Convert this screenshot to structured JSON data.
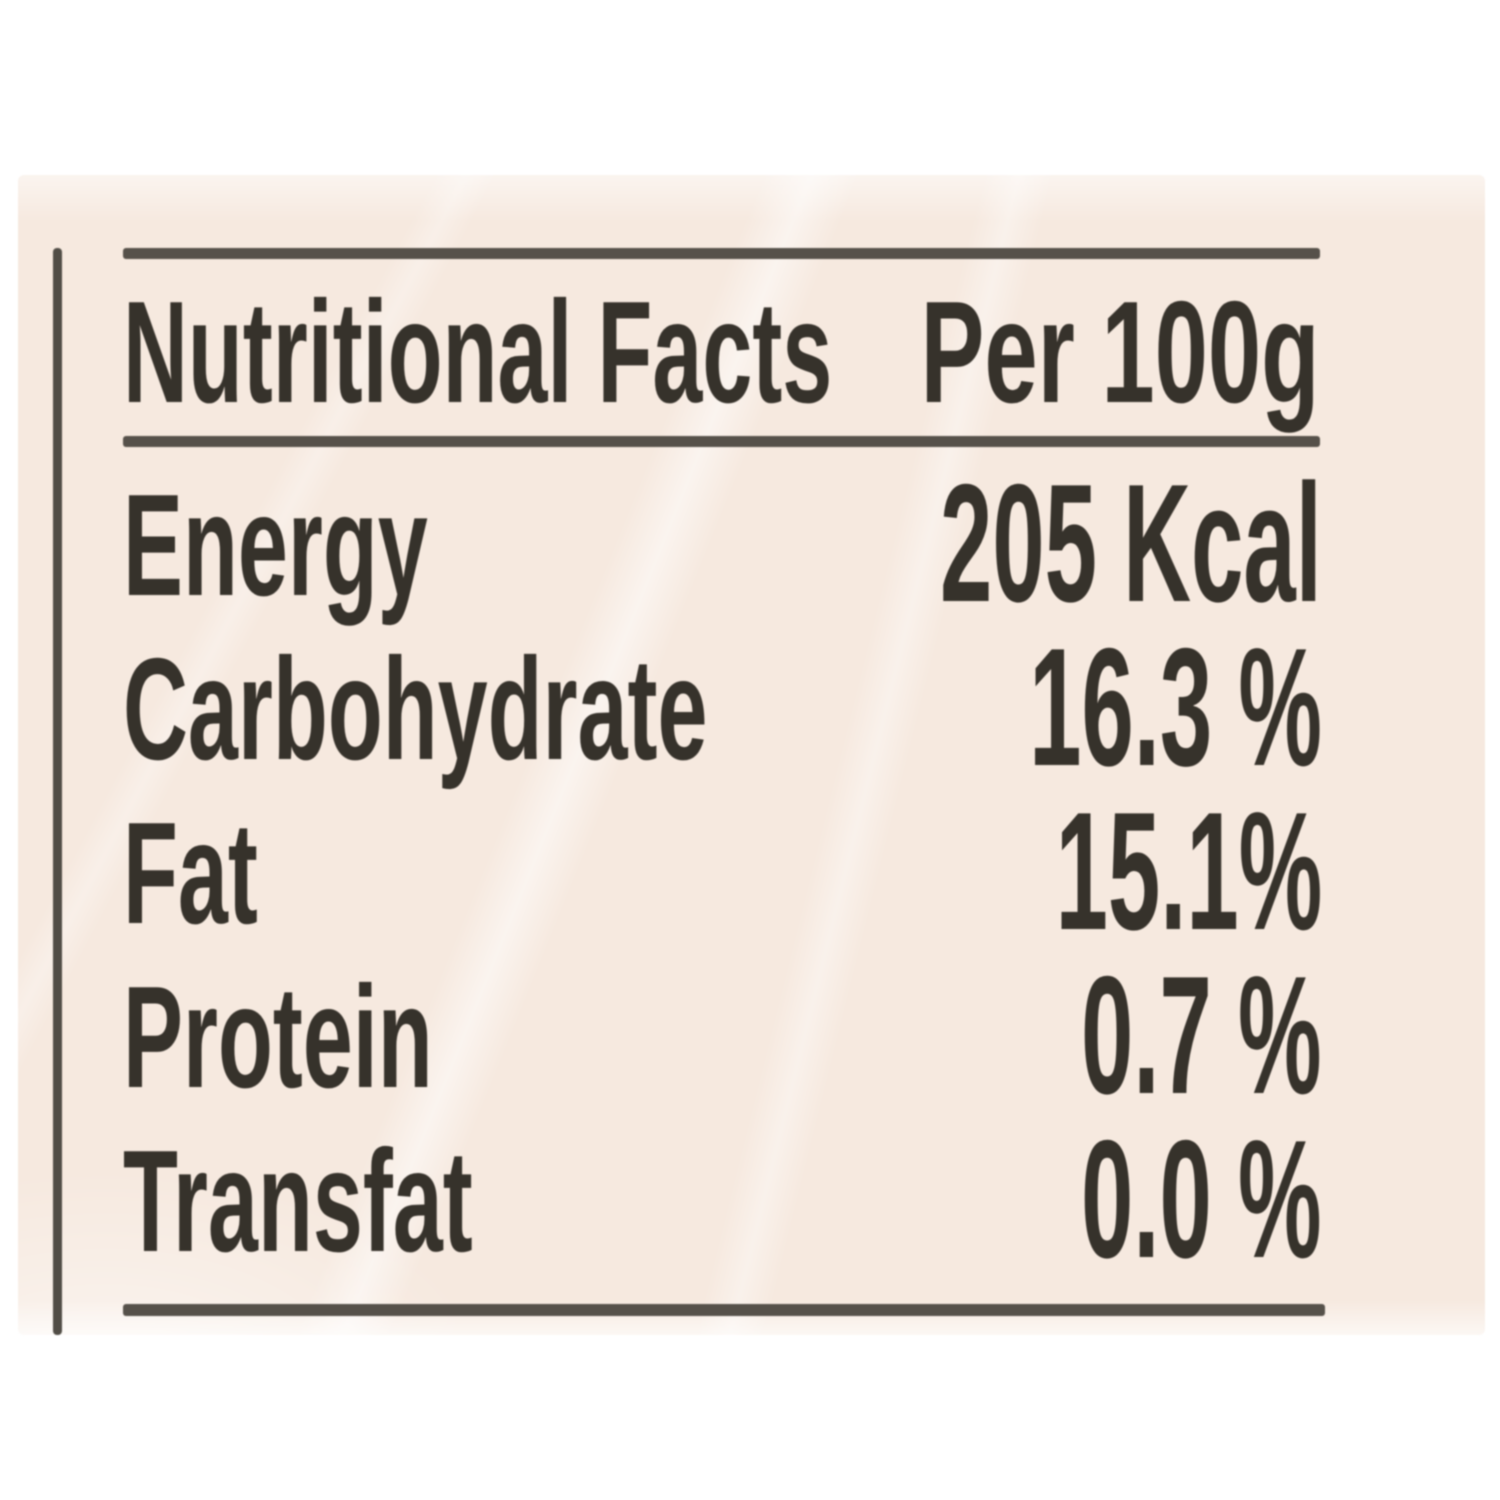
{
  "nutrition_label": {
    "header": {
      "title": "Nutritional Facts",
      "serving": "Per 100g"
    },
    "rows": [
      {
        "name": "Energy",
        "value": "205 Kcal"
      },
      {
        "name": "Carbohydrate",
        "value": "16.3 %"
      },
      {
        "name": "Fat",
        "value": "15.1%"
      },
      {
        "name": "Protein",
        "value": "0.7 %"
      },
      {
        "name": "Transfat",
        "value": "0.0 %"
      }
    ],
    "colors": {
      "page_background": "#ffffff",
      "label_background": "#f6e9df",
      "text": "#36322b",
      "rule": "#56514a"
    }
  }
}
